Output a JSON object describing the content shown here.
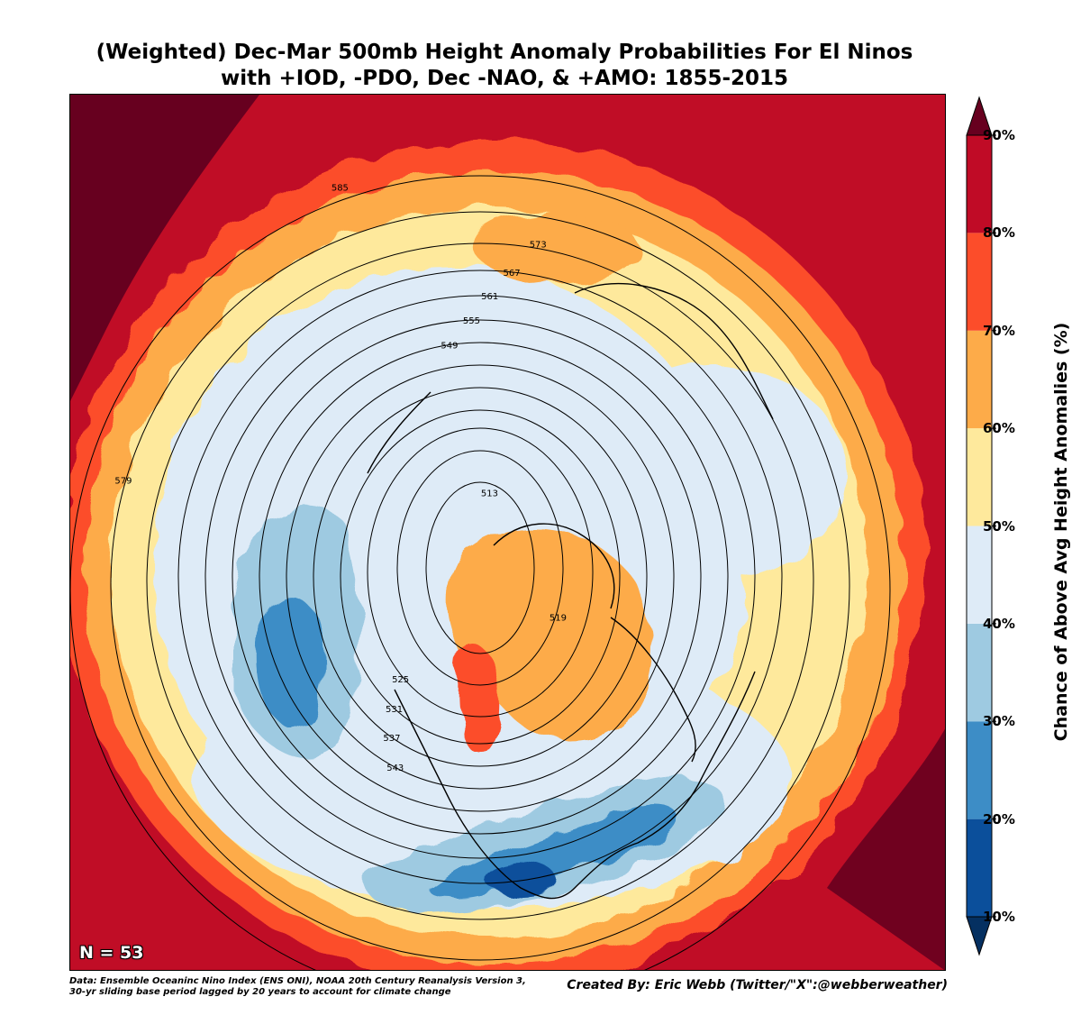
{
  "title": {
    "line1": "(Weighted) Dec-Mar 500mb Height Anomaly Probabilities For El Ninos",
    "line2": "with +IOD, -PDO, Dec -NAO, & +AMO: 1855-2015"
  },
  "sample_label": "N = 53",
  "colorbar": {
    "label": "Chance of Above Avg Height Anomalies (%)",
    "ticks": [
      "90%",
      "80%",
      "70%",
      "60%",
      "50%",
      "40%",
      "30%",
      "20%",
      "10%"
    ],
    "colors": [
      "#053061",
      "#0b4f9b",
      "#3d8dc6",
      "#9ecae1",
      "#deebf7",
      "#fee99c",
      "#fdab49",
      "#fc4d2a",
      "#c00b26",
      "#67001f"
    ]
  },
  "contour_labels": [
    "513",
    "519",
    "525",
    "531",
    "537",
    "543",
    "549",
    "555",
    "561",
    "567",
    "573",
    "579",
    "585"
  ],
  "footer": {
    "data_line1": "Data: Ensemble Oceaninc Nino Index (ENS ONI), NOAA 20th Century Reanalysis Version 3,",
    "data_line2": " 30-yr sliding base period lagged by 20 years to account for climate change",
    "credit": "Created By: Eric Webb (Twitter/\"X\":@webberweather)"
  }
}
